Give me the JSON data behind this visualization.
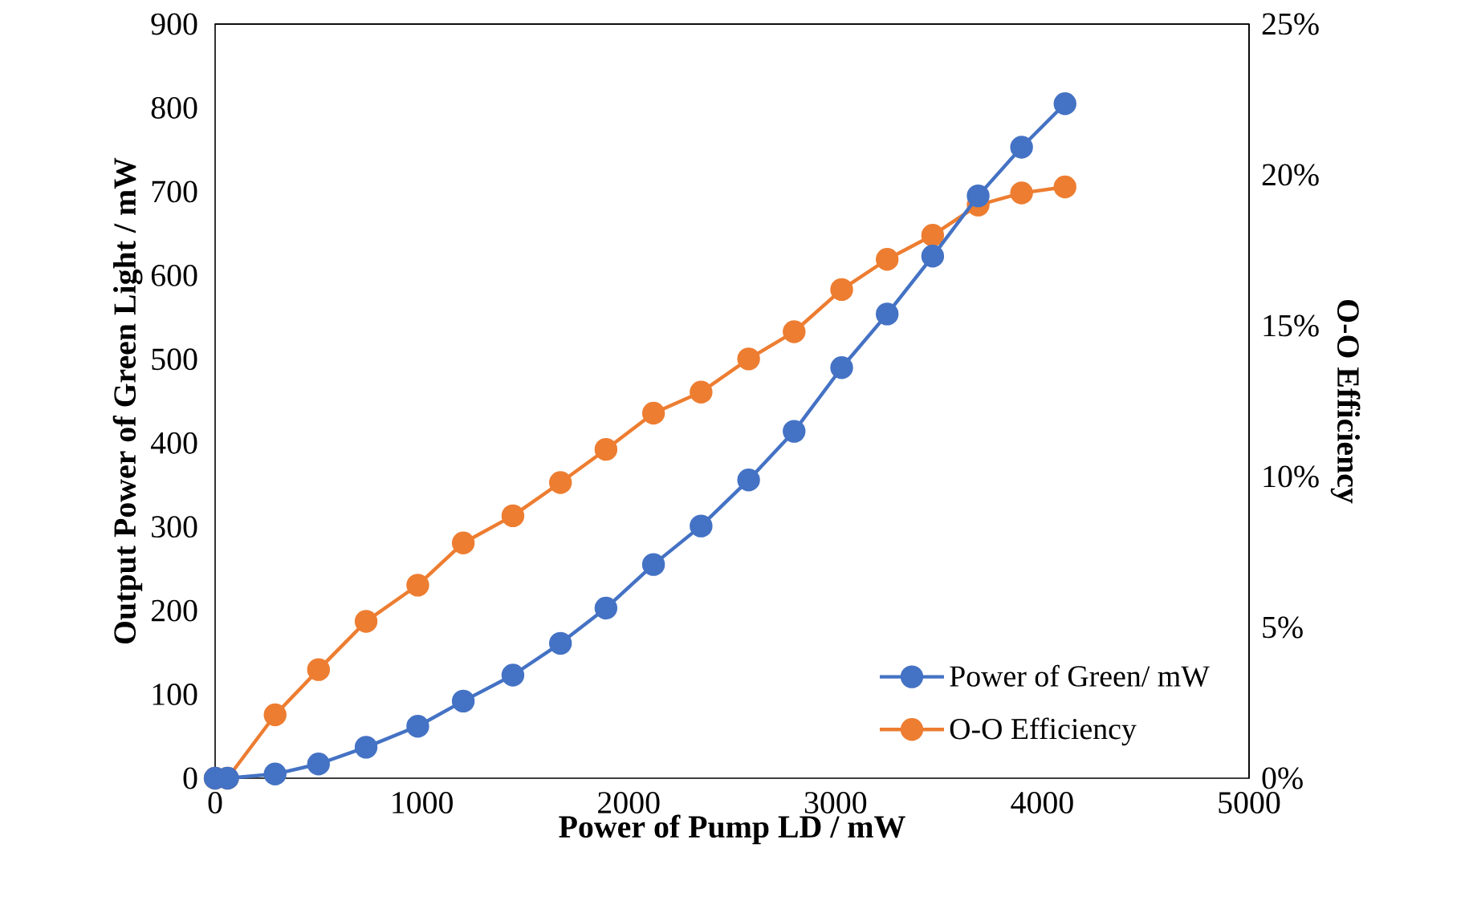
{
  "chart_data": {
    "type": "line",
    "xlabel": "Power of Pump LD / mW",
    "ylabel": "Output Power of Green Light / mW",
    "y2label": "O-O Efficiency",
    "x": [
      0,
      60,
      290,
      500,
      730,
      980,
      1200,
      1440,
      1670,
      1890,
      2120,
      2350,
      2580,
      2800,
      3030,
      3250,
      3470,
      3690,
      3900,
      4110
    ],
    "series": [
      {
        "name": "Power of Green/ mW",
        "color": "#4472c4",
        "values": [
          0,
          0,
          5,
          17,
          37,
          62,
          92,
          123,
          161,
          203,
          255,
          301,
          356,
          414,
          490,
          554,
          623,
          695,
          753,
          805
        ]
      },
      {
        "name": "O-O Efficiency",
        "color": "#ed7d31",
        "axis": "y2",
        "values": [
          0,
          0,
          2.1,
          3.6,
          5.2,
          6.4,
          7.8,
          8.7,
          9.8,
          10.9,
          12.1,
          12.8,
          13.9,
          14.8,
          16.2,
          17.2,
          18.0,
          19.0,
          19.4,
          19.6
        ]
      }
    ],
    "xlim": [
      0,
      5000
    ],
    "xticks": [
      0,
      1000,
      2000,
      3000,
      4000,
      5000
    ],
    "ylim": [
      0,
      900
    ],
    "yticks": [
      0,
      100,
      200,
      300,
      400,
      500,
      600,
      700,
      800,
      900
    ],
    "y2lim": [
      0,
      25
    ],
    "y2ticks": [
      {
        "value": 0,
        "label": "0%"
      },
      {
        "value": 5,
        "label": "5%"
      },
      {
        "value": 10,
        "label": "10%"
      },
      {
        "value": 15,
        "label": "15%"
      },
      {
        "value": 20,
        "label": "20%"
      },
      {
        "value": 25,
        "label": "25%"
      }
    ],
    "marker": "circle",
    "line_style": "solid",
    "legend": "bottom right",
    "grid": false
  }
}
